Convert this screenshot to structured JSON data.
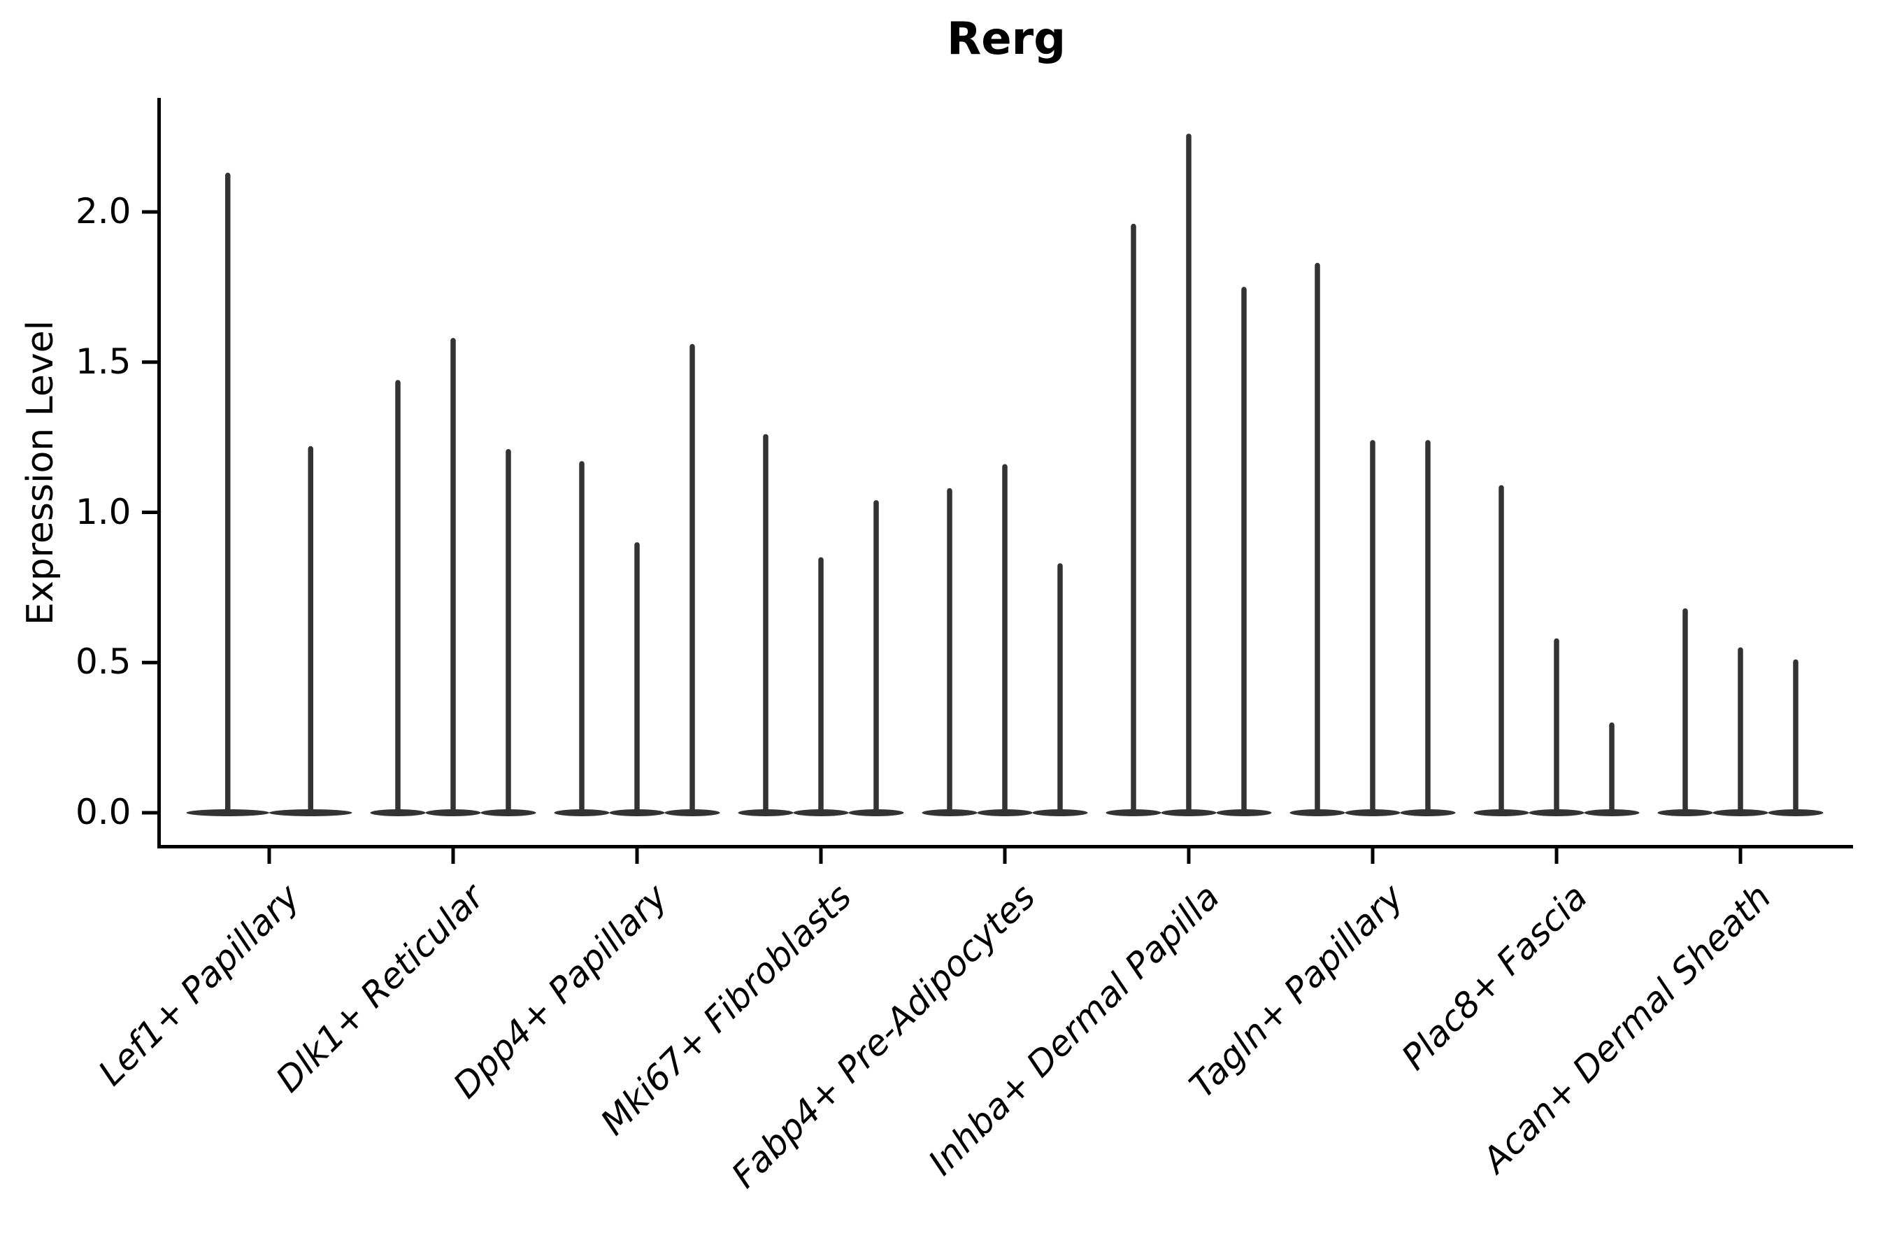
{
  "chart_data": {
    "type": "violin",
    "title": "Rerg",
    "ylabel": "Expression Level",
    "xlabel": "",
    "grid": false,
    "legend": null,
    "orientation": "vertical",
    "violin_color": "#333333",
    "axis_color": "#000000",
    "ylim": [
      -0.11,
      2.38
    ],
    "yticks": [
      {
        "label": "0.0",
        "value": 0.0
      },
      {
        "label": "0.5",
        "value": 0.5
      },
      {
        "label": "1.0",
        "value": 1.0
      },
      {
        "label": "1.5",
        "value": 1.5
      },
      {
        "label": "2.0",
        "value": 2.0
      }
    ],
    "categories": [
      "Lef1+ Papillary",
      "Dlk1+ Reticular",
      "Dpp4+ Papillary",
      "Mki67+ Fibroblasts",
      "Fabp4+ Pre-Adipocytes",
      "Inhba+ Dermal Papilla",
      "Tagln+ Papillary",
      "Plac8+ Fascia",
      "Acan+ Dermal Sheath"
    ],
    "groups": [
      {
        "category": "Lef1+ Papillary",
        "violin_max_values": [
          2.13,
          1.22
        ]
      },
      {
        "category": "Dlk1+ Reticular",
        "violin_max_values": [
          1.44,
          1.58,
          1.21
        ]
      },
      {
        "category": "Dpp4+ Papillary",
        "violin_max_values": [
          1.17,
          0.9,
          1.56
        ]
      },
      {
        "category": "Mki67+ Fibroblasts",
        "violin_max_values": [
          1.26,
          0.85,
          1.04
        ]
      },
      {
        "category": "Fabp4+ Pre-Adipocytes",
        "violin_max_values": [
          1.08,
          1.16,
          0.83
        ]
      },
      {
        "category": "Inhba+ Dermal Papilla",
        "violin_max_values": [
          1.96,
          2.26,
          1.75
        ]
      },
      {
        "category": "Tagln+ Papillary",
        "violin_max_values": [
          1.83,
          1.24,
          1.24
        ]
      },
      {
        "category": "Plac8+ Fascia",
        "violin_max_values": [
          1.09,
          0.58,
          0.3
        ]
      },
      {
        "category": "Acan+ Dermal Sheath",
        "violin_max_values": [
          0.68,
          0.55,
          0.51
        ]
      }
    ],
    "violin_shape_note": "each violin is nearly all zeros: flat lens at 0 with a thin spike up to its max value"
  }
}
